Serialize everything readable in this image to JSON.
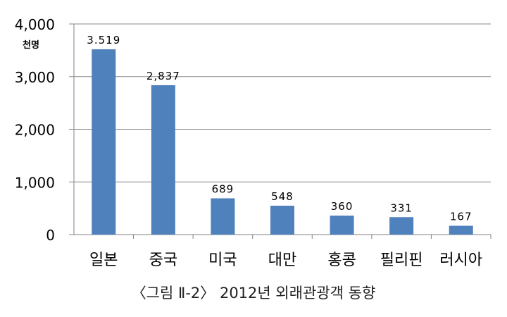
{
  "chart_data": {
    "type": "bar",
    "title": "",
    "xlabel": "",
    "ylabel": "",
    "unit_label": "천명",
    "categories": [
      "일본",
      "중국",
      "미국",
      "대만",
      "홍콩",
      "필리핀",
      "러시아"
    ],
    "values": [
      3519,
      2837,
      689,
      548,
      360,
      331,
      167
    ],
    "data_labels": [
      "3.519",
      "2,837",
      "689",
      "548",
      "360",
      "331",
      "167"
    ],
    "ylim": [
      0,
      4000
    ],
    "yticks": [
      0,
      1000,
      2000,
      3000,
      4000
    ],
    "ytick_labels": [
      "0",
      "1,000",
      "2,000",
      "3,000",
      "4,000"
    ],
    "grid": true,
    "legend": "none",
    "bar_color": "#4f81bd"
  },
  "caption": "〈그림 Ⅱ-2〉 2012년 외래관광객 동향"
}
